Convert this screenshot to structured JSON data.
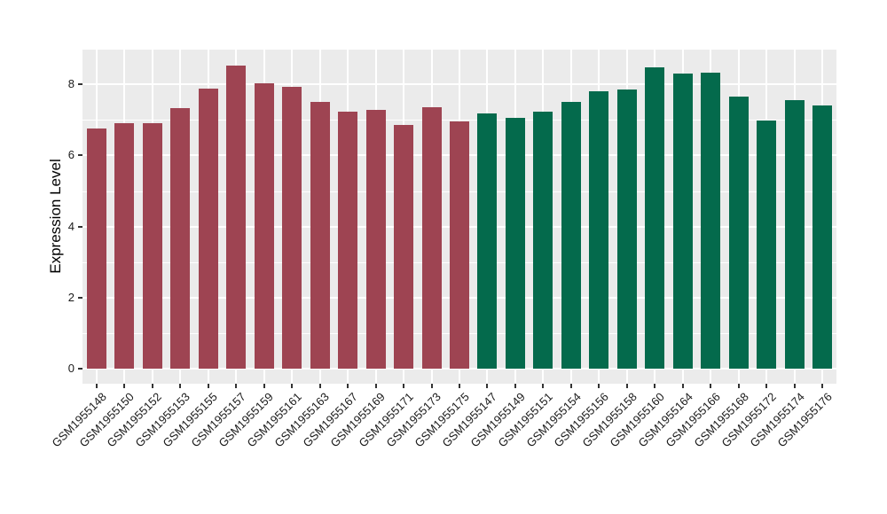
{
  "chart_data": {
    "type": "bar",
    "title": "",
    "xlabel": "",
    "ylabel": "Expression Level",
    "ylim": [
      0,
      8.96
    ],
    "yticks": [
      0,
      2,
      4,
      6,
      8
    ],
    "ytick_labels": [
      "0",
      "2",
      "4",
      "6",
      "8"
    ],
    "grid": true,
    "legend_position": "none",
    "panel_background": "#EBEBEB",
    "gridline_color": "#FFFFFF",
    "tick_color": "#333333",
    "groups": [
      {
        "name": "group-maroon",
        "color": "#9E4452"
      },
      {
        "name": "group-green",
        "color": "#046A4C"
      }
    ],
    "bars": [
      {
        "label": "GSM1955148",
        "value": 6.76,
        "group": 0
      },
      {
        "label": "GSM1955150",
        "value": 6.9,
        "group": 0
      },
      {
        "label": "GSM1955152",
        "value": 6.92,
        "group": 0
      },
      {
        "label": "GSM1955153",
        "value": 7.34,
        "group": 0
      },
      {
        "label": "GSM1955155",
        "value": 7.88,
        "group": 0
      },
      {
        "label": "GSM1955157",
        "value": 8.53,
        "group": 0
      },
      {
        "label": "GSM1955159",
        "value": 8.02,
        "group": 0
      },
      {
        "label": "GSM1955161",
        "value": 7.94,
        "group": 0
      },
      {
        "label": "GSM1955163",
        "value": 7.51,
        "group": 0
      },
      {
        "label": "GSM1955167",
        "value": 7.22,
        "group": 0
      },
      {
        "label": "GSM1955169",
        "value": 7.29,
        "group": 0
      },
      {
        "label": "GSM1955171",
        "value": 6.87,
        "group": 0
      },
      {
        "label": "GSM1955173",
        "value": 7.36,
        "group": 0
      },
      {
        "label": "GSM1955175",
        "value": 6.97,
        "group": 0
      },
      {
        "label": "GSM1955147",
        "value": 7.18,
        "group": 1
      },
      {
        "label": "GSM1955149",
        "value": 7.05,
        "group": 1
      },
      {
        "label": "GSM1955151",
        "value": 7.22,
        "group": 1
      },
      {
        "label": "GSM1955154",
        "value": 7.51,
        "group": 1
      },
      {
        "label": "GSM1955156",
        "value": 7.8,
        "group": 1
      },
      {
        "label": "GSM1955158",
        "value": 7.86,
        "group": 1
      },
      {
        "label": "GSM1955160",
        "value": 8.49,
        "group": 1
      },
      {
        "label": "GSM1955164",
        "value": 8.3,
        "group": 1
      },
      {
        "label": "GSM1955166",
        "value": 8.34,
        "group": 1
      },
      {
        "label": "GSM1955168",
        "value": 7.66,
        "group": 1
      },
      {
        "label": "GSM1955172",
        "value": 6.98,
        "group": 1
      },
      {
        "label": "GSM1955174",
        "value": 7.55,
        "group": 1
      },
      {
        "label": "GSM1955176",
        "value": 7.4,
        "group": 1
      }
    ]
  }
}
